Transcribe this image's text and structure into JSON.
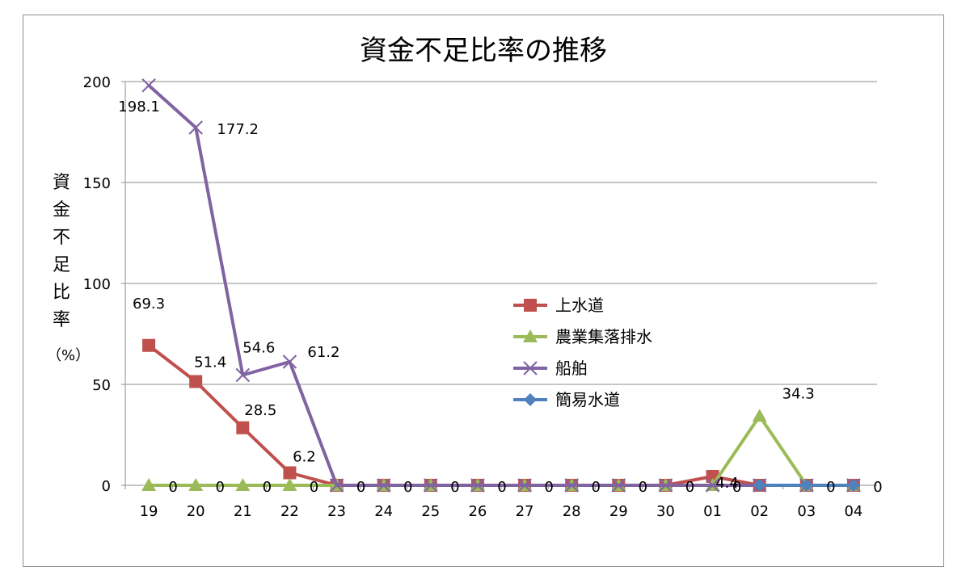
{
  "chart_data": {
    "type": "line",
    "title": "資金不足比率の推移",
    "ylabel": "資金不足比率（%）",
    "ylabel_chars": [
      "資",
      "金",
      "不",
      "足",
      "比",
      "率",
      "（%）"
    ],
    "xlabel": "",
    "categories": [
      "19",
      "20",
      "21",
      "22",
      "23",
      "24",
      "25",
      "26",
      "27",
      "28",
      "29",
      "30",
      "01",
      "02",
      "03",
      "04"
    ],
    "ylim": [
      0,
      200
    ],
    "yticks": [
      0,
      50,
      100,
      150,
      200
    ],
    "grid": true,
    "legend_position": "right",
    "series": [
      {
        "name": "上水道",
        "color": "#c0504d",
        "marker": "square",
        "values": [
          69.3,
          51.4,
          28.5,
          6.2,
          0,
          0,
          0,
          0,
          0,
          0,
          0,
          0,
          4.4,
          0,
          0,
          0
        ],
        "labels": [
          "69.3",
          "51.4",
          "28.5",
          "6.2",
          null,
          null,
          null,
          null,
          null,
          null,
          null,
          null,
          "4.4",
          null,
          null,
          null
        ]
      },
      {
        "name": "農業集落排水",
        "color": "#9bbb59",
        "marker": "triangle",
        "values": [
          0,
          0,
          0,
          0,
          0,
          0,
          0,
          0,
          0,
          0,
          0,
          0,
          0,
          34.3,
          0,
          0
        ],
        "labels": [
          "0",
          "0",
          "0",
          "0",
          "0",
          "0",
          "0",
          "0",
          "0",
          "0",
          "0",
          "0",
          "0",
          "34.3",
          "0",
          "0"
        ]
      },
      {
        "name": "船舶",
        "color": "#8064a2",
        "marker": "x",
        "values": [
          198.1,
          177.2,
          54.6,
          61.2,
          0,
          0,
          0,
          0,
          0,
          0,
          0,
          0,
          0,
          0,
          0,
          0
        ],
        "labels": [
          "198.1",
          "177.2",
          "54.6",
          "61.2",
          null,
          null,
          null,
          null,
          null,
          null,
          null,
          null,
          null,
          null,
          null,
          null
        ]
      },
      {
        "name": "簡易水道",
        "color": "#4f81bd",
        "marker": "diamond",
        "values": [
          null,
          null,
          null,
          null,
          null,
          null,
          null,
          null,
          null,
          null,
          null,
          null,
          null,
          0,
          0,
          0
        ],
        "labels": [
          null,
          null,
          null,
          null,
          null,
          null,
          null,
          null,
          null,
          null,
          null,
          null,
          null,
          null,
          null,
          null
        ]
      }
    ]
  }
}
